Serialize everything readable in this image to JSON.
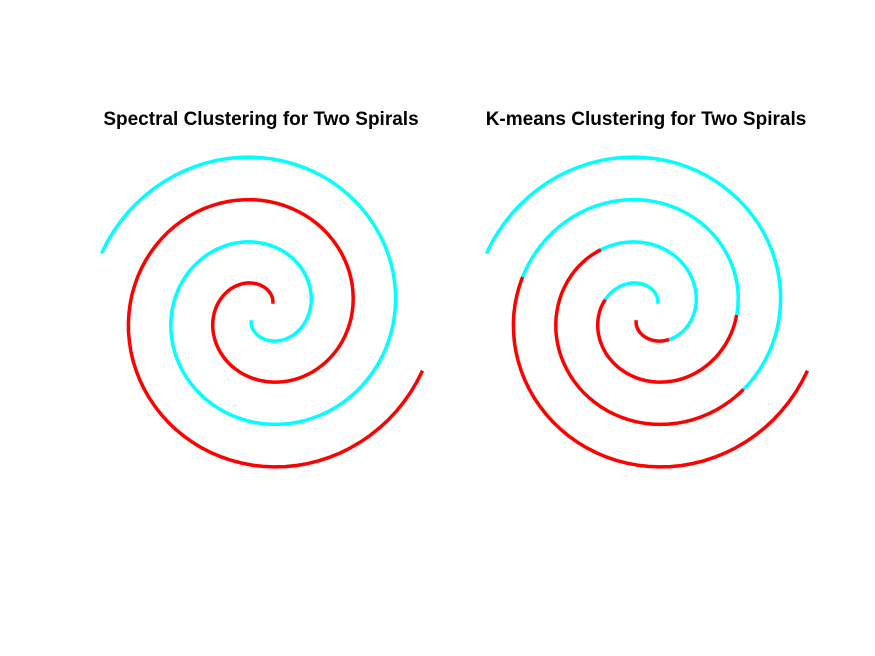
{
  "chart_data": [
    {
      "type": "scatter",
      "title": "Spectral Clustering for Two Spirals",
      "xlabel": "",
      "ylabel": "",
      "grid": false,
      "axes_visible": false,
      "series": [
        {
          "color": "#ff0000",
          "segments": [
            {
              "start_angle": 1.0,
              "end_angle": 12.566
            }
          ]
        },
        {
          "color": "#00ffff",
          "segments": [
            {
              "start_angle": 1.0,
              "end_angle": 12.566
            }
          ]
        }
      ]
    },
    {
      "type": "scatter",
      "title": "K-means Clustering for Two Spirals",
      "xlabel": "",
      "ylabel": "",
      "grid": false,
      "axes_visible": false,
      "series": [
        {
          "color": "#ff0000",
          "segments": [
            {
              "start_angle": 3.2,
              "end_angle": 6.6
            },
            {
              "start_angle": 9.5,
              "end_angle": 12.566
            }
          ]
        },
        {
          "color": "#00ffff",
          "segments": [
            {
              "start_angle": 1.0,
              "end_angle": 3.2
            },
            {
              "start_angle": 6.6,
              "end_angle": 9.5
            }
          ]
        },
        {
          "color": "#ff0000",
          "segments": [
            {
              "start_angle": 1.0,
              "end_angle": 2.6
            },
            {
              "start_angle": 5.7,
              "end_angle": 9.1
            }
          ]
        },
        {
          "color": "#00ffff",
          "segments": [
            {
              "start_angle": 2.6,
              "end_angle": 5.7
            },
            {
              "start_angle": 9.1,
              "end_angle": 12.566
            }
          ]
        }
      ]
    }
  ]
}
